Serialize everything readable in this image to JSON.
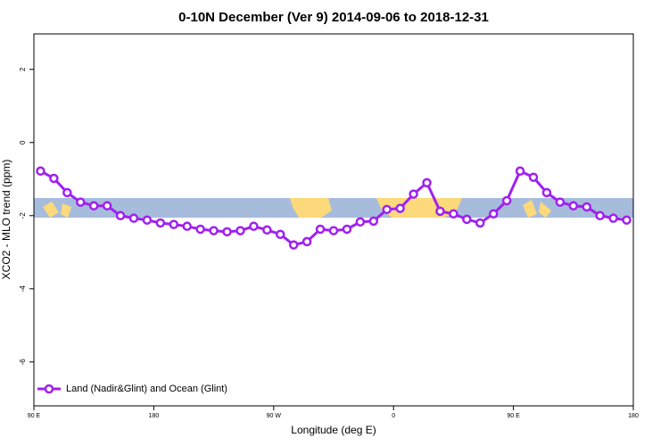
{
  "chart_data": {
    "type": "line",
    "title": "0-10N December (Ver 9)   2014-09-06 to 2018-12-31",
    "xlabel": "Longitude (deg E)",
    "ylabel": "XCO2 - MLO trend (ppm)",
    "x": [
      95,
      105,
      115,
      125,
      135,
      145,
      155,
      165,
      175,
      185,
      195,
      205,
      215,
      225,
      235,
      245,
      255,
      265,
      275,
      285,
      295,
      305,
      315,
      325,
      335,
      345,
      355,
      365,
      375,
      385,
      395,
      405,
      415,
      425,
      435,
      445,
      455,
      465,
      475,
      485,
      495,
      505,
      515,
      525,
      535
    ],
    "series": [
      {
        "name": "Land (Nadir&Glint) and Ocean (Glint)",
        "color": "#a020f0",
        "values": [
          -0.78,
          -0.98,
          -1.37,
          -1.63,
          -1.73,
          -1.73,
          -2.0,
          -2.07,
          -2.12,
          -2.2,
          -2.24,
          -2.29,
          -2.37,
          -2.41,
          -2.44,
          -2.41,
          -2.29,
          -2.39,
          -2.51,
          -2.8,
          -2.71,
          -2.37,
          -2.41,
          -2.37,
          -2.17,
          -2.15,
          -1.83,
          -1.8,
          -1.41,
          -1.1,
          -1.88,
          -1.95,
          -2.1,
          -2.2,
          -1.95,
          -1.59,
          -0.78,
          -0.95,
          -1.37,
          -1.63,
          -1.73,
          -1.76,
          -2.0,
          -2.07,
          -2.12
        ]
      }
    ],
    "xlim": [
      90,
      540
    ],
    "xticks": [
      {
        "value": 90,
        "label": "90 E"
      },
      180,
      {
        "value": 270,
        "label": "90 W"
      },
      {
        "value": 360,
        "label": "0"
      },
      {
        "value": 450,
        "label": "90 E"
      },
      {
        "value": 540,
        "label": "180"
      }
    ],
    "ylim": [
      -7.2,
      2.97
    ],
    "yticks": [
      2,
      0,
      -2,
      -4,
      -6
    ],
    "legend": "bottom-left"
  }
}
